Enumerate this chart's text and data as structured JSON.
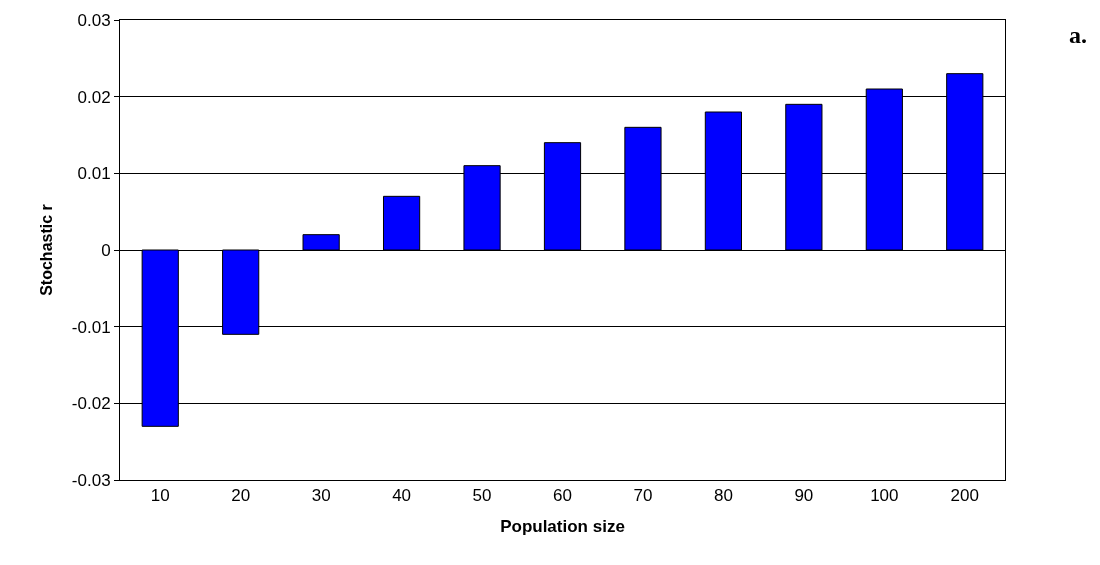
{
  "chart_data": {
    "type": "bar",
    "xlabel": "Population size",
    "ylabel": "Stochastic r",
    "categories": [
      "10",
      "20",
      "30",
      "40",
      "50",
      "60",
      "70",
      "80",
      "90",
      "100",
      "200"
    ],
    "values": [
      -0.023,
      -0.011,
      0.002,
      0.007,
      0.011,
      0.014,
      0.016,
      0.018,
      0.019,
      0.021,
      0.023
    ],
    "color": "#0000ff",
    "ylim": [
      -0.03,
      0.03
    ],
    "yticks": [
      -0.03,
      -0.02,
      -0.01,
      0,
      0.01,
      0.02,
      0.03
    ],
    "grid": "y",
    "annotations": [
      "a."
    ]
  }
}
